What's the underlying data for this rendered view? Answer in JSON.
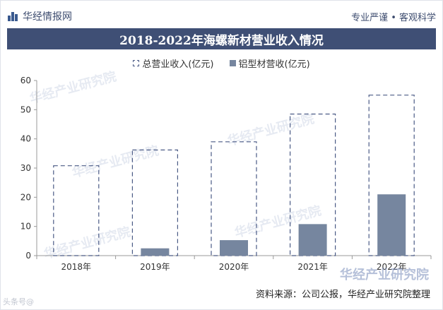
{
  "header": {
    "brand": "华经情报网",
    "slogan": "专业严谨 • 客观科学"
  },
  "chart_data": {
    "type": "bar",
    "title": "2018-2022年海螺新材营业收入情况",
    "categories": [
      "2018年",
      "2019年",
      "2020年",
      "2021年",
      "2022年"
    ],
    "series": [
      {
        "name": "总营业收入(亿元)",
        "values": [
          30.8,
          36.2,
          39.0,
          48.5,
          55.0
        ],
        "style": "dashed-outline",
        "color": "#4a5a85"
      },
      {
        "name": "铝型材营收(亿元)",
        "values": [
          0,
          2.5,
          5.3,
          10.8,
          21.0
        ],
        "style": "solid",
        "color": "#76869f"
      }
    ],
    "ylim": [
      0,
      60
    ],
    "yticks": [
      0,
      10,
      20,
      30,
      40,
      50,
      60
    ],
    "grid": false,
    "legend_position": "top-center"
  },
  "footer": {
    "source": "资料来源：公司公报，华经产业研究院整理"
  },
  "watermark": {
    "text": "华经产业研究院",
    "corner": "头条号@"
  }
}
